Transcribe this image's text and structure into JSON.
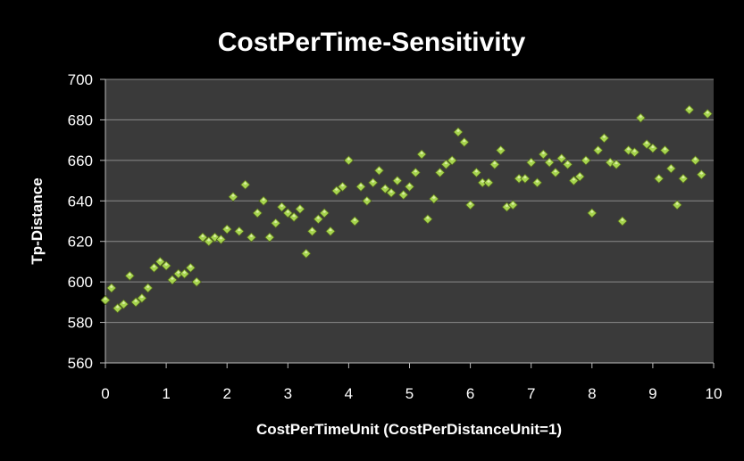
{
  "chart_data": {
    "type": "scatter",
    "title": "CostPerTime-Sensitivity",
    "xlabel": "CostPerTimeUnit (CostPerDistanceUnit=1)",
    "ylabel": "Tp-Distance",
    "xlim": [
      0,
      10
    ],
    "ylim": [
      560,
      700
    ],
    "xticks": [
      "0",
      "1",
      "2",
      "3",
      "4",
      "5",
      "6",
      "7",
      "8",
      "9",
      "10"
    ],
    "yticks": [
      "560",
      "580",
      "600",
      "620",
      "640",
      "660",
      "680",
      "700"
    ],
    "grid": true,
    "legend": "none",
    "colors": {
      "background": "#000000",
      "plot_area": "#3a3a3a",
      "gridline": "#8a8a8a",
      "marker": "#a6d44e",
      "marker_edge": "#556b1f"
    },
    "points": [
      [
        0.0,
        591
      ],
      [
        0.1,
        597
      ],
      [
        0.2,
        587
      ],
      [
        0.3,
        589
      ],
      [
        0.4,
        603
      ],
      [
        0.5,
        590
      ],
      [
        0.6,
        592
      ],
      [
        0.7,
        597
      ],
      [
        0.8,
        607
      ],
      [
        0.9,
        610
      ],
      [
        1.0,
        608
      ],
      [
        1.1,
        601
      ],
      [
        1.2,
        604
      ],
      [
        1.3,
        604
      ],
      [
        1.4,
        607
      ],
      [
        1.5,
        600
      ],
      [
        1.6,
        622
      ],
      [
        1.7,
        620
      ],
      [
        1.8,
        622
      ],
      [
        1.9,
        621
      ],
      [
        2.0,
        626
      ],
      [
        2.1,
        642
      ],
      [
        2.2,
        625
      ],
      [
        2.3,
        648
      ],
      [
        2.4,
        622
      ],
      [
        2.5,
        634
      ],
      [
        2.6,
        640
      ],
      [
        2.7,
        622
      ],
      [
        2.8,
        629
      ],
      [
        2.9,
        637
      ],
      [
        3.0,
        634
      ],
      [
        3.1,
        632
      ],
      [
        3.2,
        636
      ],
      [
        3.3,
        614
      ],
      [
        3.4,
        625
      ],
      [
        3.5,
        631
      ],
      [
        3.6,
        634
      ],
      [
        3.7,
        625
      ],
      [
        3.8,
        645
      ],
      [
        3.9,
        647
      ],
      [
        4.0,
        660
      ],
      [
        4.1,
        630
      ],
      [
        4.2,
        647
      ],
      [
        4.3,
        640
      ],
      [
        4.4,
        649
      ],
      [
        4.5,
        655
      ],
      [
        4.6,
        646
      ],
      [
        4.7,
        644
      ],
      [
        4.8,
        650
      ],
      [
        4.9,
        643
      ],
      [
        5.0,
        647
      ],
      [
        5.1,
        654
      ],
      [
        5.2,
        663
      ],
      [
        5.3,
        631
      ],
      [
        5.4,
        641
      ],
      [
        5.5,
        654
      ],
      [
        5.6,
        658
      ],
      [
        5.7,
        660
      ],
      [
        5.8,
        674
      ],
      [
        5.9,
        669
      ],
      [
        6.0,
        638
      ],
      [
        6.1,
        654
      ],
      [
        6.2,
        649
      ],
      [
        6.3,
        649
      ],
      [
        6.4,
        658
      ],
      [
        6.5,
        665
      ],
      [
        6.6,
        637
      ],
      [
        6.7,
        638
      ],
      [
        6.8,
        651
      ],
      [
        6.9,
        651
      ],
      [
        7.0,
        659
      ],
      [
        7.1,
        649
      ],
      [
        7.2,
        663
      ],
      [
        7.3,
        659
      ],
      [
        7.4,
        654
      ],
      [
        7.5,
        661
      ],
      [
        7.6,
        658
      ],
      [
        7.7,
        650
      ],
      [
        7.8,
        652
      ],
      [
        7.9,
        660
      ],
      [
        8.0,
        634
      ],
      [
        8.1,
        665
      ],
      [
        8.2,
        671
      ],
      [
        8.3,
        659
      ],
      [
        8.4,
        658
      ],
      [
        8.5,
        630
      ],
      [
        8.6,
        665
      ],
      [
        8.7,
        664
      ],
      [
        8.8,
        681
      ],
      [
        8.9,
        668
      ],
      [
        9.0,
        666
      ],
      [
        9.1,
        651
      ],
      [
        9.2,
        665
      ],
      [
        9.3,
        656
      ],
      [
        9.4,
        638
      ],
      [
        9.5,
        651
      ],
      [
        9.6,
        685
      ],
      [
        9.7,
        660
      ],
      [
        9.8,
        653
      ],
      [
        9.9,
        683
      ]
    ]
  }
}
